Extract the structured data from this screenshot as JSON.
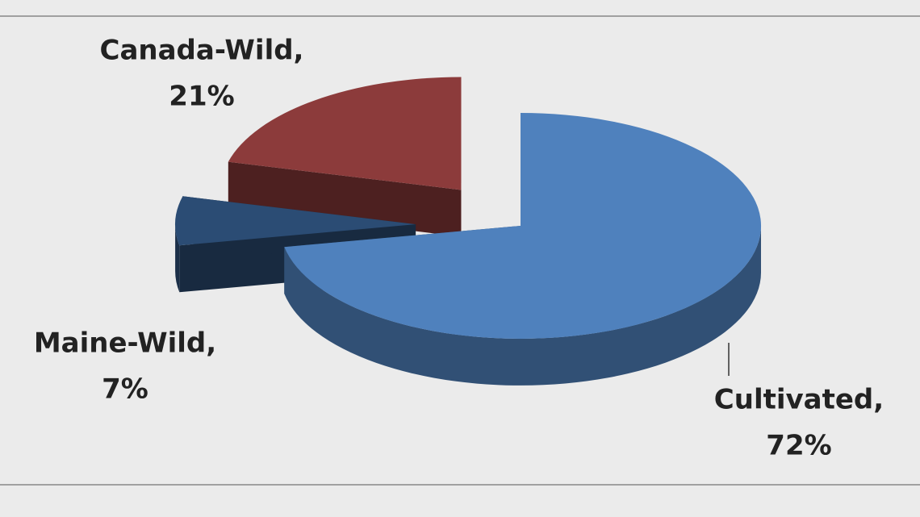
{
  "chart_data": {
    "type": "pie",
    "categories": [
      "Cultivated,",
      "Maine-Wild,",
      "Canada-Wild,"
    ],
    "values": [
      72,
      7,
      21
    ],
    "value_labels": [
      "72%",
      "7%",
      "21%"
    ],
    "colors": [
      "#4f81bd",
      "#2b4c74",
      "#8c3b3b"
    ]
  }
}
